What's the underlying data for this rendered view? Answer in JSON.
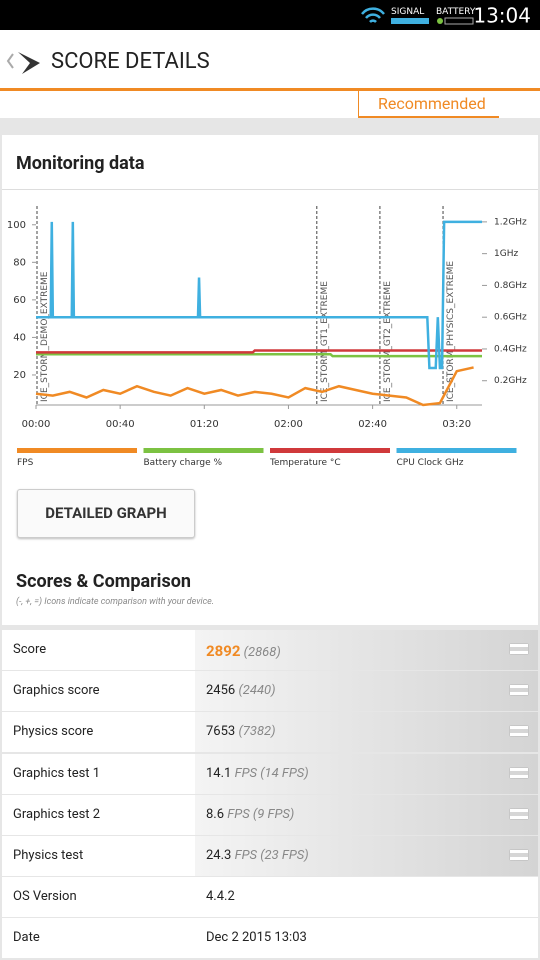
{
  "status_bar": {
    "signal_label": "SIGNAL",
    "battery_label": "BATTERY",
    "time": "13:04"
  },
  "header": {
    "title": "SCORE DETAILS"
  },
  "tab": {
    "label": "Recommended"
  },
  "monitoring": {
    "title": "Monitoring data",
    "button": "DETAILED GRAPH"
  },
  "chart_data": {
    "type": "line",
    "xlim": [
      0,
      212
    ],
    "xticks": [
      {
        "value": 0,
        "label": "00:00"
      },
      {
        "value": 40,
        "label": "00:40"
      },
      {
        "value": 80,
        "label": "01:20"
      },
      {
        "value": 120,
        "label": "02:00"
      },
      {
        "value": 160,
        "label": "02:40"
      },
      {
        "value": 200,
        "label": "03:20"
      }
    ],
    "ylim": [
      0,
      110
    ],
    "yticks": [
      20,
      40,
      60,
      80,
      100
    ],
    "y2lim": [
      0,
      1.3
    ],
    "y2ticks": [
      {
        "value": 0.2,
        "label": "0.2GHz"
      },
      {
        "value": 0.4,
        "label": "0.4GHz"
      },
      {
        "value": 0.6,
        "label": "0.6GHz"
      },
      {
        "value": 0.8,
        "label": "0.8GHz"
      },
      {
        "value": 1.0,
        "label": "1GHz"
      },
      {
        "value": 1.2,
        "label": "1.2GHz"
      }
    ],
    "markers": [
      {
        "x": 0,
        "label": "ICE_STORM_DEMO_EXTREME"
      },
      {
        "x": 133,
        "label": "ICE_STORM_GT1_EXTREME"
      },
      {
        "x": 163,
        "label": "ICE_STORM_GT2_EXTREME"
      },
      {
        "x": 193,
        "label": "ICE_STORM_PHYSICS_EXTREME"
      }
    ],
    "series": [
      {
        "name": "FPS",
        "color": "#f08a24",
        "x": [
          0,
          8,
          16,
          24,
          32,
          40,
          48,
          56,
          64,
          72,
          80,
          88,
          96,
          104,
          112,
          120,
          128,
          136,
          144,
          152,
          160,
          168,
          176,
          184,
          192,
          200,
          208
        ],
        "values": [
          10,
          9,
          11,
          8,
          12,
          10,
          14,
          11,
          9,
          13,
          10,
          12,
          9,
          11,
          10,
          8,
          13,
          11,
          14,
          12,
          10,
          9,
          8,
          4,
          5,
          22,
          24
        ]
      },
      {
        "name": "Battery charge %",
        "color": "#7cc242",
        "x": [
          0,
          140,
          141,
          212
        ],
        "values": [
          31,
          31,
          30,
          30
        ]
      },
      {
        "name": "Temperature °C",
        "color": "#d0393b",
        "x": [
          0,
          103,
          104,
          212
        ],
        "values": [
          32,
          32,
          33,
          33
        ]
      },
      {
        "name": "CPU Clock GHz",
        "color": "#3fb0e0",
        "axis": "y2",
        "x": [
          0,
          7,
          7.5,
          8,
          17,
          17.5,
          18,
          77,
          77.5,
          78,
          186,
          187,
          190,
          191,
          192,
          193,
          194,
          212
        ],
        "values": [
          0.6,
          0.6,
          1.2,
          0.6,
          0.6,
          1.2,
          0.6,
          0.6,
          0.85,
          0.6,
          0.6,
          0.28,
          0.28,
          0.6,
          0.28,
          0.28,
          1.2,
          1.2
        ]
      }
    ]
  },
  "scores": {
    "title": "Scores & Comparison",
    "subtitle": "(-, +, =) Icons indicate comparison with your device.",
    "rows": [
      {
        "label": "Score",
        "value": "2892",
        "comparison": "(2868)"
      },
      {
        "label": "Graphics score",
        "value": "2456",
        "comparison": "(2440)"
      },
      {
        "label": "Physics score",
        "value": "7653",
        "comparison": "(7382)"
      },
      {
        "label": "Graphics test 1",
        "value": "14.1",
        "comparison": "FPS (14 FPS)"
      },
      {
        "label": "Graphics test 2",
        "value": "8.6",
        "comparison": "FPS (9 FPS)"
      },
      {
        "label": "Physics test",
        "value": "24.3",
        "comparison": "FPS (23 FPS)"
      },
      {
        "label": "OS Version",
        "value": "4.4.2"
      },
      {
        "label": "Date",
        "value": "Dec 2 2015 13:03"
      }
    ]
  }
}
